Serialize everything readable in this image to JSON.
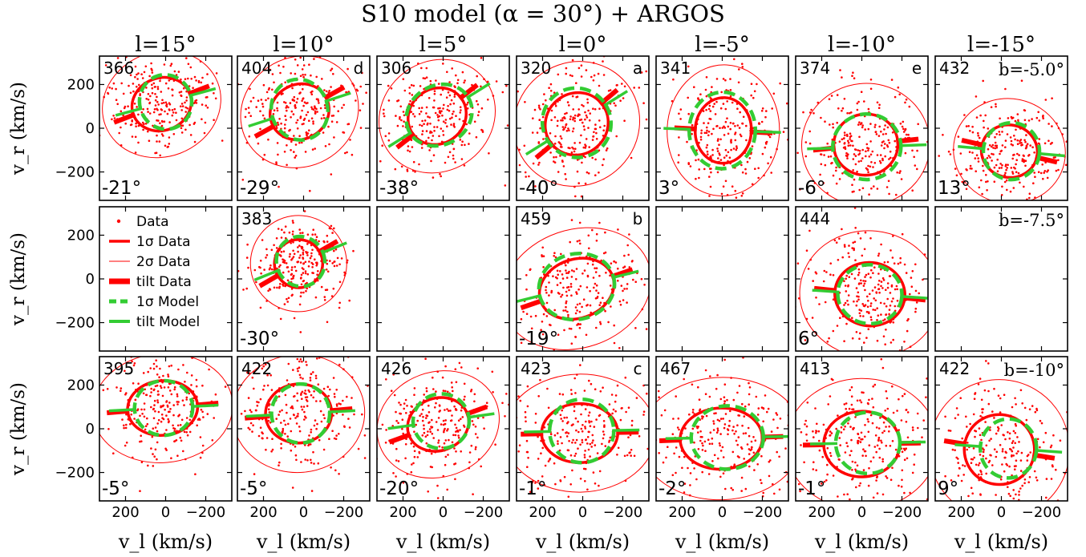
{
  "figure": {
    "title": "S10 model (α = 30°) + ARGOS",
    "column_labels": [
      "l=15°",
      "l=10°",
      "l=5°",
      "l=0°",
      "l=-5°",
      "l=-10°",
      "l=-15°"
    ],
    "row_labels": [
      "b=-5.0°",
      "b=-7.5°",
      "b=-10°"
    ],
    "ylabel": "v_r (km/s)",
    "xlabel": "v_l (km/s)",
    "x_ticks": [
      "200",
      "0",
      "−200"
    ],
    "y_ticks": [
      "200",
      "0",
      "−200"
    ],
    "legend": [
      "Data",
      "1σ Data",
      "2σ Data",
      "tilt Data",
      "1σ Model",
      "tilt Model"
    ],
    "colors": {
      "data": "#ff0000",
      "model": "#33cc33"
    }
  },
  "chart_data": {
    "type": "scatter",
    "xlim": [
      330,
      -330
    ],
    "ylim": [
      -330,
      330
    ],
    "x_axis_reversed": true,
    "panels": [
      {
        "row": 0,
        "col": 0,
        "l": 15,
        "b": -5.0,
        "count": "366",
        "tilt_label": "-21°",
        "letter": "",
        "data": {
          "cx": 20,
          "cy": 110,
          "sx": 150,
          "sy": 120,
          "tilt": -21
        },
        "model": {
          "cx": 0,
          "cy": 120,
          "sx": 130,
          "sy": 125,
          "tilt": -15
        }
      },
      {
        "row": 0,
        "col": 1,
        "l": 10,
        "b": -5.0,
        "count": "404",
        "tilt_label": "-29°",
        "letter": "d",
        "data": {
          "cx": 20,
          "cy": 75,
          "sx": 150,
          "sy": 125,
          "tilt": -29
        },
        "model": {
          "cx": 20,
          "cy": 85,
          "sx": 140,
          "sy": 140,
          "tilt": -18
        }
      },
      {
        "row": 0,
        "col": 2,
        "l": 5,
        "b": -5.0,
        "count": "306",
        "tilt_label": "-38°",
        "letter": "",
        "data": {
          "cx": 30,
          "cy": 55,
          "sx": 150,
          "sy": 125,
          "tilt": -38
        },
        "model": {
          "cx": 20,
          "cy": 60,
          "sx": 170,
          "sy": 135,
          "tilt": -32
        }
      },
      {
        "row": 0,
        "col": 3,
        "l": 0,
        "b": -5.0,
        "count": "320",
        "tilt_label": "-40°",
        "letter": "a",
        "data": {
          "cx": 30,
          "cy": 20,
          "sx": 160,
          "sy": 140,
          "tilt": -40
        },
        "model": {
          "cx": 30,
          "cy": 25,
          "sx": 170,
          "sy": 160,
          "tilt": -32
        }
      },
      {
        "row": 0,
        "col": 4,
        "l": -5,
        "b": -5.0,
        "count": "341",
        "tilt_label": "3°",
        "letter": "",
        "data": {
          "cx": -5,
          "cy": -10,
          "sx": 140,
          "sy": 150,
          "tilt": 3
        },
        "model": {
          "cx": 0,
          "cy": -10,
          "sx": 165,
          "sy": 175,
          "tilt": 2
        }
      },
      {
        "row": 0,
        "col": 5,
        "l": -10,
        "b": -5.0,
        "count": "374",
        "tilt_label": "-6°",
        "letter": "e",
        "data": {
          "cx": -20,
          "cy": -75,
          "sx": 160,
          "sy": 140,
          "tilt": -6
        },
        "model": {
          "cx": -25,
          "cy": -85,
          "sx": 170,
          "sy": 150,
          "tilt": -2
        }
      },
      {
        "row": 0,
        "col": 6,
        "l": -15,
        "b": -5.0,
        "count": "432",
        "tilt_label": "13°",
        "letter": "",
        "data": {
          "cx": -40,
          "cy": -105,
          "sx": 140,
          "sy": 120,
          "tilt": 13
        },
        "model": {
          "cx": -50,
          "cy": -105,
          "sx": 140,
          "sy": 130,
          "tilt": 5
        }
      },
      {
        "row": 1,
        "col": 1,
        "l": 10,
        "b": -7.5,
        "count": "383",
        "tilt_label": "-30°",
        "letter": "",
        "data": {
          "cx": 25,
          "cy": 70,
          "sx": 120,
          "sy": 110,
          "tilt": -30
        },
        "model": {
          "cx": 15,
          "cy": 80,
          "sx": 120,
          "sy": 115,
          "tilt": -22
        }
      },
      {
        "row": 1,
        "col": 3,
        "l": 0,
        "b": -7.5,
        "count": "459",
        "tilt_label": "-19°",
        "letter": "b",
        "data": {
          "cx": 30,
          "cy": -45,
          "sx": 190,
          "sy": 135,
          "tilt": -19
        },
        "model": {
          "cx": 30,
          "cy": -35,
          "sx": 190,
          "sy": 150,
          "tilt": -14
        }
      },
      {
        "row": 1,
        "col": 5,
        "l": -10,
        "b": -7.5,
        "count": "444",
        "tilt_label": "6°",
        "letter": "",
        "data": {
          "cx": -40,
          "cy": -70,
          "sx": 175,
          "sy": 145,
          "tilt": 6
        },
        "model": {
          "cx": -40,
          "cy": -70,
          "sx": 160,
          "sy": 135,
          "tilt": 4
        }
      },
      {
        "row": 2,
        "col": 0,
        "l": 15,
        "b": -10,
        "count": "395",
        "tilt_label": "-5°",
        "letter": "",
        "data": {
          "cx": 15,
          "cy": 95,
          "sx": 175,
          "sy": 125,
          "tilt": -5
        },
        "model": {
          "cx": 10,
          "cy": 95,
          "sx": 145,
          "sy": 125,
          "tilt": -3
        }
      },
      {
        "row": 2,
        "col": 1,
        "l": 10,
        "b": -10,
        "count": "422",
        "tilt_label": "-5°",
        "letter": "",
        "data": {
          "cx": 25,
          "cy": 70,
          "sx": 165,
          "sy": 135,
          "tilt": -5
        },
        "model": {
          "cx": 15,
          "cy": 70,
          "sx": 145,
          "sy": 135,
          "tilt": -3
        }
      },
      {
        "row": 2,
        "col": 2,
        "l": 5,
        "b": -10,
        "count": "426",
        "tilt_label": "-20°",
        "letter": "",
        "data": {
          "cx": 25,
          "cy": 20,
          "sx": 155,
          "sy": 120,
          "tilt": -20
        },
        "model": {
          "cx": 10,
          "cy": 35,
          "sx": 140,
          "sy": 125,
          "tilt": -8
        }
      },
      {
        "row": 2,
        "col": 3,
        "l": 0,
        "b": -10,
        "count": "423",
        "tilt_label": "-1°",
        "letter": "c",
        "data": {
          "cx": 15,
          "cy": -20,
          "sx": 190,
          "sy": 135,
          "tilt": -1
        },
        "model": {
          "cx": 5,
          "cy": -10,
          "sx": 160,
          "sy": 145,
          "tilt": -1
        }
      },
      {
        "row": 2,
        "col": 4,
        "l": -5,
        "b": -10,
        "count": "467",
        "tilt_label": "-2°",
        "letter": "",
        "data": {
          "cx": 5,
          "cy": -45,
          "sx": 205,
          "sy": 140,
          "tilt": -2
        },
        "model": {
          "cx": -25,
          "cy": -40,
          "sx": 180,
          "sy": 145,
          "tilt": -1
        }
      },
      {
        "row": 2,
        "col": 5,
        "l": -10,
        "b": -10,
        "count": "413",
        "tilt_label": "-1°",
        "letter": "",
        "data": {
          "cx": 0,
          "cy": -70,
          "sx": 190,
          "sy": 150,
          "tilt": -1
        },
        "model": {
          "cx": -30,
          "cy": -65,
          "sx": 160,
          "sy": 140,
          "tilt": -1
        }
      },
      {
        "row": 2,
        "col": 6,
        "l": -15,
        "b": -10,
        "count": "422",
        "tilt_label": "9°",
        "letter": "",
        "data": {
          "cx": 10,
          "cy": -95,
          "sx": 175,
          "sy": 160,
          "tilt": 9
        },
        "model": {
          "cx": -35,
          "cy": -90,
          "sx": 140,
          "sy": 135,
          "tilt": 4
        }
      }
    ]
  }
}
